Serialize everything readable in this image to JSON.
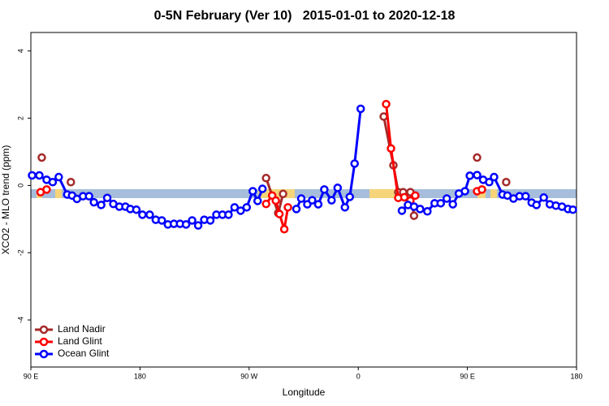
{
  "chart_data": {
    "type": "line",
    "title": "0-5N February (Ver 10)   2015-01-01 to 2020-12-18",
    "xlabel": "Longitude",
    "ylabel": "XCO2 - MLO trend (ppm)",
    "xlim": [
      90,
      540
    ],
    "ylim": [
      -5.4,
      4.55
    ],
    "xticks": [
      {
        "value": 90,
        "label": "90 E"
      },
      180,
      {
        "value": 270,
        "label": "90 W"
      },
      {
        "value": 360,
        "label": "0"
      },
      {
        "value": 450,
        "label": "90 E"
      },
      {
        "value": 540,
        "label": "180"
      }
    ],
    "yticks": [
      -4,
      -2,
      0,
      2,
      4
    ],
    "legend": "bottom-left",
    "series": [
      {
        "name": "Land Nadir",
        "color": "#a52a2a",
        "x": [
          99,
          null,
          123,
          null,
          284,
          294,
          298,
          null,
          381,
          389,
          393,
          397,
          403,
          406,
          null,
          458,
          null,
          482
        ],
        "values": [
          0.83,
          null,
          0.1,
          null,
          0.22,
          -0.82,
          -0.25,
          null,
          2.05,
          0.6,
          -0.2,
          -0.2,
          -0.2,
          -0.9,
          null,
          0.83,
          null,
          0.1
        ]
      },
      {
        "name": "Land Glint",
        "color": "#ff0000",
        "x": [
          98,
          103,
          null,
          284,
          289,
          292,
          295,
          299,
          302,
          null,
          383,
          387,
          393,
          398,
          403,
          407,
          null,
          458,
          462
        ],
        "values": [
          -0.2,
          -0.12,
          null,
          -0.55,
          -0.3,
          -0.45,
          -0.85,
          -1.3,
          -0.65,
          null,
          2.42,
          1.1,
          -0.37,
          -0.35,
          -0.45,
          -0.3,
          null,
          -0.17,
          -0.12
        ]
      },
      {
        "name": "Ocean Glint",
        "color": "#0000ff",
        "x": [
          91,
          97,
          103,
          108,
          113,
          120,
          124,
          128,
          133,
          138,
          142,
          148,
          153,
          158,
          163,
          168,
          172,
          177,
          182,
          188,
          193,
          198,
          203,
          208,
          213,
          218,
          223,
          228,
          233,
          238,
          243,
          248,
          253,
          258,
          263,
          268,
          273,
          277,
          281,
          null,
          309,
          313,
          318,
          322,
          327,
          332,
          338,
          343,
          349,
          353,
          357,
          362,
          null,
          396,
          401,
          406,
          411,
          417,
          423,
          428,
          433,
          438,
          443,
          448,
          452,
          458,
          463,
          468,
          472,
          479,
          483,
          488,
          493,
          498,
          503,
          507,
          513,
          518,
          523,
          528,
          533,
          537
        ],
        "values": [
          0.3,
          0.3,
          0.17,
          0.1,
          0.25,
          -0.27,
          -0.3,
          -0.4,
          -0.32,
          -0.32,
          -0.5,
          -0.58,
          -0.37,
          -0.55,
          -0.63,
          -0.63,
          -0.7,
          -0.72,
          -0.87,
          -0.87,
          -1.02,
          -1.04,
          -1.16,
          -1.14,
          -1.14,
          -1.16,
          -1.04,
          -1.19,
          -1.02,
          -1.04,
          -0.87,
          -0.87,
          -0.87,
          -0.65,
          -0.75,
          -0.65,
          -0.17,
          -0.46,
          -0.1,
          null,
          -0.7,
          -0.39,
          -0.56,
          -0.44,
          -0.56,
          -0.12,
          -0.44,
          -0.07,
          -0.65,
          -0.34,
          0.65,
          2.28,
          null,
          -0.75,
          -0.58,
          -0.63,
          -0.7,
          -0.77,
          -0.53,
          -0.53,
          -0.39,
          -0.56,
          -0.24,
          -0.17,
          0.29,
          0.31,
          0.17,
          0.1,
          0.25,
          -0.27,
          -0.3,
          -0.39,
          -0.32,
          -0.32,
          -0.51,
          -0.58,
          -0.36,
          -0.56,
          -0.6,
          -0.63,
          -0.7,
          -0.72
        ]
      }
    ]
  }
}
